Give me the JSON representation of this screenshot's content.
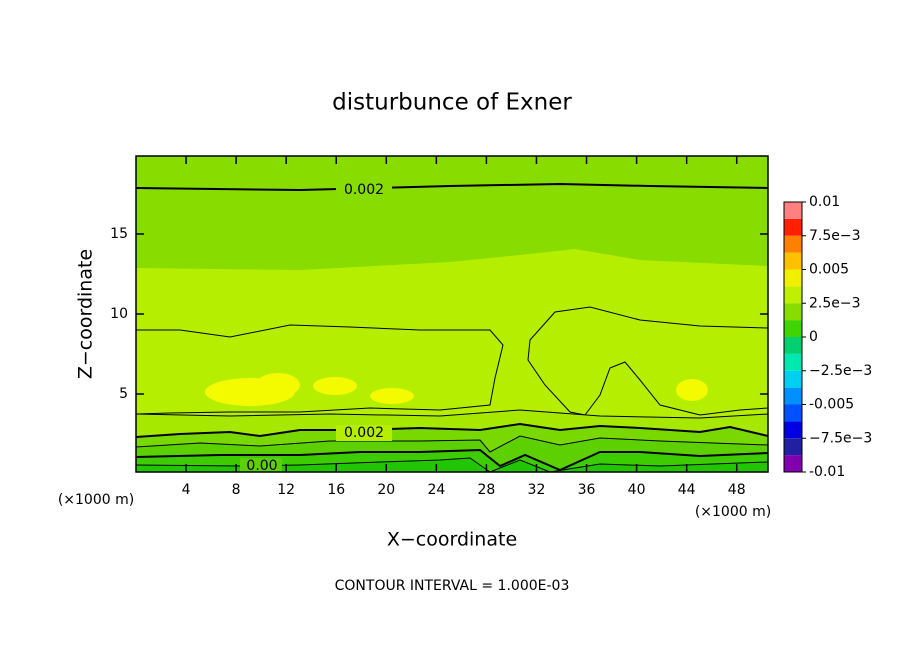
{
  "chart_data": {
    "type": "contour",
    "title": "disturbunce of Exner",
    "x_label": "X−coordinate",
    "y_label": "Z−coordinate",
    "x_unit_label": "(×1000 m)",
    "y_unit_label": "(×1000 m)",
    "footer": "CONTOUR INTERVAL = 1.000E-03",
    "contour_labels": [
      "0.002",
      "0.002",
      "0.00"
    ],
    "xlim": [
      0,
      50.5
    ],
    "ylim": [
      0.125,
      19.875
    ],
    "xticks": [
      4,
      8,
      12,
      16,
      20,
      24,
      28,
      32,
      36,
      40,
      44,
      48
    ],
    "yticks": [
      5,
      10,
      15
    ],
    "colorbar": {
      "clim": [
        -0.01,
        0.01
      ],
      "colors": [
        "#8000b0",
        "#2020a0",
        "#0000e0",
        "#0050ff",
        "#0090ff",
        "#00d0f0",
        "#00e8b0",
        "#00d070",
        "#40d400",
        "#88dc00",
        "#c0f000",
        "#f0f000",
        "#ffc000",
        "#ff8000",
        "#ff2000",
        "#ff8080"
      ],
      "ticks": [
        -0.01,
        {
          "value": -0.0075,
          "label": "−7.5e−3"
        },
        -0.005,
        {
          "value": -0.0025,
          "label": "−2.5e−3"
        },
        0,
        {
          "value": 0.0025,
          "label": "2.5e−3"
        },
        0.005,
        {
          "value": 0.0075,
          "label": "7.5e−3"
        },
        0.01
      ]
    }
  }
}
